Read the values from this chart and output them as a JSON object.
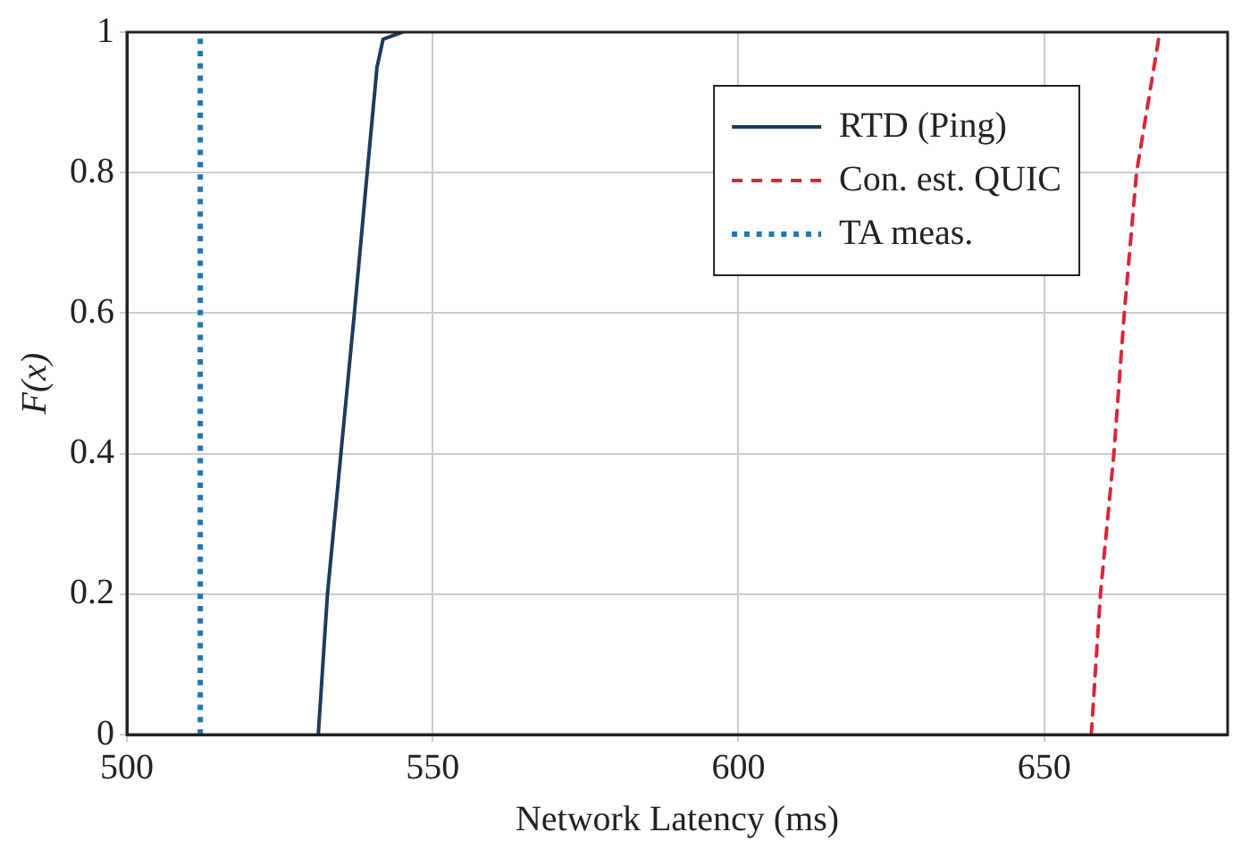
{
  "chart_data": {
    "type": "line",
    "xlabel": "Network Latency (ms)",
    "ylabel": "F(x)",
    "xlim": [
      500,
      680
    ],
    "xticks": [
      500,
      550,
      600,
      650
    ],
    "ylim": [
      0,
      1
    ],
    "yticks": [
      0,
      0.2,
      0.4,
      0.6,
      0.8,
      1
    ],
    "grid": true,
    "legend": "top right",
    "marker": "none",
    "series": [
      {
        "name": "RTD (Ping)",
        "color": "#1f3a5f",
        "line_style": "solid",
        "x": [
          531.3,
          532.8,
          535.0,
          537.2,
          539.3,
          540.9,
          541.9,
          545
        ],
        "values": [
          0,
          0.2,
          0.4,
          0.6,
          0.8,
          0.95,
          0.99,
          1
        ]
      },
      {
        "name": "Con. est. QUIC",
        "color": "#d62839",
        "line_style": "dashed",
        "x": [
          657.7,
          659.2,
          661.4,
          663.1,
          665.1,
          668.9
        ],
        "values": [
          0,
          0.2,
          0.4,
          0.6,
          0.8,
          1
        ]
      },
      {
        "name": "TA meas.",
        "color": "#1f77b4",
        "line_style": "dotted",
        "x": [
          512,
          512
        ],
        "values": [
          0,
          1
        ]
      }
    ]
  }
}
